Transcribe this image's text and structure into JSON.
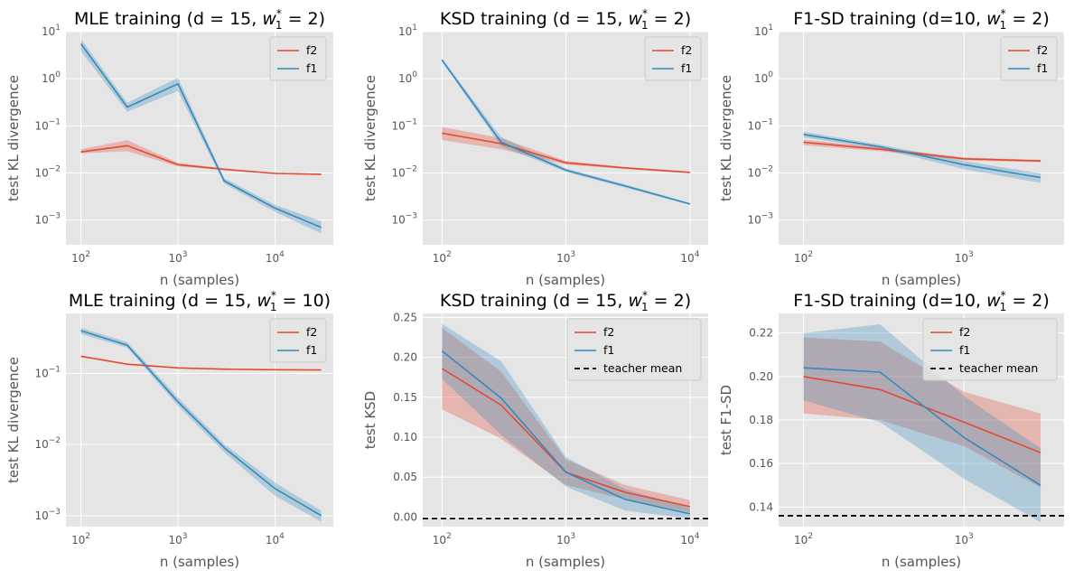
{
  "colors": {
    "f2": "#E24A33",
    "f1": "#348ABD",
    "panel_bg": "#E5E5E5",
    "grid": "#ffffff",
    "teacher": "#000000"
  },
  "chart_data": [
    {
      "type": "line",
      "title_main": "MLE training (d = 15, ",
      "title_math": "w",
      "title_sub": "1",
      "title_sup": "*",
      "title_rest": " = 2)",
      "xlabel": "n (samples)",
      "ylabel": "test KL divergence",
      "xscale": "log",
      "yscale": "log",
      "xlim": [
        70,
        40000
      ],
      "ylim": [
        0.0003,
        10
      ],
      "xticks": [
        {
          "value": 100,
          "base": "10",
          "exp": "2"
        },
        {
          "value": 1000,
          "base": "10",
          "exp": "3"
        },
        {
          "value": 10000,
          "base": "10",
          "exp": "4"
        }
      ],
      "yticks": [
        {
          "value": 0.001,
          "base": "10",
          "exp": "−3"
        },
        {
          "value": 0.01,
          "base": "10",
          "exp": "−2"
        },
        {
          "value": 0.1,
          "base": "10",
          "exp": "−1"
        },
        {
          "value": 1,
          "base": "10",
          "exp": "0"
        },
        {
          "value": 10,
          "base": "10",
          "exp": "1"
        }
      ],
      "legend": [
        "f2",
        "f1"
      ],
      "legend_position": "top-right",
      "series": [
        {
          "name": "f2",
          "x": [
            100,
            300,
            1000,
            3000,
            10000,
            30000
          ],
          "y": [
            0.028,
            0.038,
            0.015,
            0.012,
            0.0098,
            0.0094
          ],
          "lower": [
            0.026,
            0.029,
            0.0138,
            0.0115,
            0.0095,
            0.0091
          ],
          "upper": [
            0.032,
            0.05,
            0.0165,
            0.0125,
            0.0101,
            0.0097
          ]
        },
        {
          "name": "f1",
          "x": [
            100,
            300,
            1000,
            3000,
            10000,
            30000
          ],
          "y": [
            5.5,
            0.25,
            0.78,
            0.0068,
            0.0018,
            0.0007
          ],
          "lower": [
            3.8,
            0.2,
            0.55,
            0.006,
            0.0015,
            0.00052
          ],
          "upper": [
            7.0,
            0.31,
            1.05,
            0.0078,
            0.0021,
            0.00095
          ]
        }
      ]
    },
    {
      "type": "line",
      "title_main": "KSD training (d = 15, ",
      "title_math": "w",
      "title_sub": "1",
      "title_sup": "*",
      "title_rest": " = 2)",
      "xlabel": "n (samples)",
      "ylabel": "test KL divergence",
      "xscale": "log",
      "yscale": "log",
      "xlim": [
        70,
        14000
      ],
      "ylim": [
        0.0003,
        10
      ],
      "xticks": [
        {
          "value": 100,
          "base": "10",
          "exp": "2"
        },
        {
          "value": 1000,
          "base": "10",
          "exp": "3"
        },
        {
          "value": 10000,
          "base": "10",
          "exp": "4"
        }
      ],
      "yticks": [
        {
          "value": 0.001,
          "base": "10",
          "exp": "−3"
        },
        {
          "value": 0.01,
          "base": "10",
          "exp": "−2"
        },
        {
          "value": 0.1,
          "base": "10",
          "exp": "−1"
        },
        {
          "value": 1,
          "base": "10",
          "exp": "0"
        },
        {
          "value": 10,
          "base": "10",
          "exp": "1"
        }
      ],
      "legend": [
        "f2",
        "f1"
      ],
      "legend_position": "top-right",
      "series": [
        {
          "name": "f2",
          "x": [
            100,
            300,
            1000,
            3000,
            10000
          ],
          "y": [
            0.07,
            0.042,
            0.0165,
            0.0128,
            0.0103
          ],
          "lower": [
            0.05,
            0.032,
            0.015,
            0.0122,
            0.0099
          ],
          "upper": [
            0.095,
            0.055,
            0.018,
            0.0135,
            0.0107
          ]
        },
        {
          "name": "f1",
          "x": [
            100,
            300,
            1000,
            3000,
            10000
          ],
          "y": [
            2.5,
            0.045,
            0.0115,
            0.0053,
            0.0022
          ],
          "lower": [
            2.3,
            0.037,
            0.0105,
            0.0049,
            0.0021
          ],
          "upper": [
            2.7,
            0.058,
            0.0125,
            0.0057,
            0.0023
          ]
        }
      ]
    },
    {
      "type": "line",
      "title_main": "F1-SD training (d=10, ",
      "title_math": "w",
      "title_sub": "1",
      "title_sup": "*",
      "title_rest": " = 2)",
      "xlabel": "n (samples)",
      "ylabel": "test KL divergence",
      "xscale": "log",
      "yscale": "log",
      "xlim": [
        70,
        4200
      ],
      "ylim": [
        0.0003,
        10
      ],
      "xticks": [
        {
          "value": 100,
          "base": "10",
          "exp": "2"
        },
        {
          "value": 1000,
          "base": "10",
          "exp": "3"
        }
      ],
      "yticks": [
        {
          "value": 0.001,
          "base": "10",
          "exp": "−3"
        },
        {
          "value": 0.01,
          "base": "10",
          "exp": "−2"
        },
        {
          "value": 0.1,
          "base": "10",
          "exp": "−1"
        },
        {
          "value": 1,
          "base": "10",
          "exp": "0"
        },
        {
          "value": 10,
          "base": "10",
          "exp": "1"
        }
      ],
      "legend": [
        "f2",
        "f1"
      ],
      "legend_position": "top-right",
      "series": [
        {
          "name": "f2",
          "x": [
            100,
            300,
            1000,
            3000
          ],
          "y": [
            0.045,
            0.032,
            0.02,
            0.018
          ],
          "lower": [
            0.039,
            0.029,
            0.0185,
            0.017
          ],
          "upper": [
            0.051,
            0.035,
            0.0215,
            0.019
          ]
        },
        {
          "name": "f1",
          "x": [
            100,
            300,
            1000,
            3000
          ],
          "y": [
            0.066,
            0.036,
            0.015,
            0.008
          ],
          "lower": [
            0.057,
            0.033,
            0.012,
            0.0062
          ],
          "upper": [
            0.075,
            0.04,
            0.018,
            0.0098
          ]
        }
      ]
    },
    {
      "type": "line",
      "title_main": "MLE training (d = 15, ",
      "title_math": "w",
      "title_sub": "1",
      "title_sup": "*",
      "title_rest": " = 10)",
      "xlabel": "n (samples)",
      "ylabel": "test KL divergence",
      "xscale": "log",
      "yscale": "log",
      "xlim": [
        70,
        40000
      ],
      "ylim": [
        0.0007,
        0.7
      ],
      "xticks": [
        {
          "value": 100,
          "base": "10",
          "exp": "2"
        },
        {
          "value": 1000,
          "base": "10",
          "exp": "3"
        },
        {
          "value": 10000,
          "base": "10",
          "exp": "4"
        }
      ],
      "yticks": [
        {
          "value": 0.001,
          "base": "10",
          "exp": "−3"
        },
        {
          "value": 0.01,
          "base": "10",
          "exp": "−2"
        },
        {
          "value": 0.1,
          "base": "10",
          "exp": "−1"
        }
      ],
      "legend": [
        "f2",
        "f1"
      ],
      "legend_position": "top-right",
      "series": [
        {
          "name": "f2",
          "x": [
            100,
            300,
            1000,
            3000,
            10000,
            30000
          ],
          "y": [
            0.175,
            0.135,
            0.12,
            0.115,
            0.113,
            0.112
          ],
          "lower": [
            0.171,
            0.132,
            0.118,
            0.113,
            0.111,
            0.11
          ],
          "upper": [
            0.179,
            0.138,
            0.122,
            0.117,
            0.115,
            0.114
          ]
        },
        {
          "name": "f1",
          "x": [
            100,
            300,
            1000,
            3000,
            10000,
            30000
          ],
          "y": [
            0.4,
            0.25,
            0.04,
            0.009,
            0.0024,
            0.001
          ],
          "lower": [
            0.36,
            0.23,
            0.035,
            0.0078,
            0.0019,
            0.00082
          ],
          "upper": [
            0.44,
            0.275,
            0.046,
            0.0102,
            0.0029,
            0.00118
          ]
        }
      ]
    },
    {
      "type": "line",
      "title_main": "KSD training (d = 15, ",
      "title_math": "w",
      "title_sub": "1",
      "title_sup": "*",
      "title_rest": " = 2)",
      "xlabel": "n (samples)",
      "ylabel": "test KSD",
      "xscale": "log",
      "yscale": "linear",
      "xlim": [
        70,
        14000
      ],
      "ylim": [
        -0.012,
        0.255
      ],
      "xticks": [
        {
          "value": 100,
          "base": "10",
          "exp": "2"
        },
        {
          "value": 1000,
          "base": "10",
          "exp": "3"
        },
        {
          "value": 10000,
          "base": "10",
          "exp": "4"
        }
      ],
      "yticks": [
        {
          "value": 0.0,
          "label": "0.00"
        },
        {
          "value": 0.05,
          "label": "0.05"
        },
        {
          "value": 0.1,
          "label": "0.10"
        },
        {
          "value": 0.15,
          "label": "0.15"
        },
        {
          "value": 0.2,
          "label": "0.20"
        },
        {
          "value": 0.25,
          "label": "0.25"
        }
      ],
      "legend": [
        "f2",
        "f1",
        "teacher mean"
      ],
      "legend_position": "top-right",
      "teacher_mean": -0.002,
      "series": [
        {
          "name": "f2",
          "x": [
            100,
            300,
            1000,
            3000,
            10000
          ],
          "y": [
            0.186,
            0.14,
            0.056,
            0.031,
            0.013
          ],
          "lower": [
            0.135,
            0.098,
            0.04,
            0.022,
            0.006
          ],
          "upper": [
            0.237,
            0.182,
            0.072,
            0.04,
            0.021
          ]
        },
        {
          "name": "f1",
          "x": [
            100,
            300,
            1000,
            3000,
            10000
          ],
          "y": [
            0.208,
            0.149,
            0.056,
            0.022,
            0.004
          ],
          "lower": [
            0.173,
            0.103,
            0.038,
            0.008,
            -0.002
          ],
          "upper": [
            0.242,
            0.195,
            0.075,
            0.035,
            0.011
          ]
        }
      ]
    },
    {
      "type": "line",
      "title_main": "F1-SD training (d=10, ",
      "title_math": "w",
      "title_sub": "1",
      "title_sup": "*",
      "title_rest": " = 2)",
      "xlabel": "n (samples)",
      "ylabel": "test F1-SD",
      "xscale": "log",
      "yscale": "linear",
      "xlim": [
        70,
        4200
      ],
      "ylim": [
        0.131,
        0.229
      ],
      "xticks": [
        {
          "value": 100,
          "base": "10",
          "exp": "2"
        },
        {
          "value": 1000,
          "base": "10",
          "exp": "3"
        }
      ],
      "yticks": [
        {
          "value": 0.14,
          "label": "0.14"
        },
        {
          "value": 0.16,
          "label": "0.16"
        },
        {
          "value": 0.18,
          "label": "0.18"
        },
        {
          "value": 0.2,
          "label": "0.20"
        },
        {
          "value": 0.22,
          "label": "0.22"
        }
      ],
      "legend": [
        "f2",
        "f1",
        "teacher mean"
      ],
      "legend_position": "top-right",
      "teacher_mean": 0.136,
      "series": [
        {
          "name": "f2",
          "x": [
            100,
            300,
            1000,
            3000
          ],
          "y": [
            0.2,
            0.194,
            0.179,
            0.165
          ],
          "lower": [
            0.183,
            0.18,
            0.168,
            0.149
          ],
          "upper": [
            0.218,
            0.216,
            0.193,
            0.183
          ]
        },
        {
          "name": "f1",
          "x": [
            100,
            300,
            1000,
            3000
          ],
          "y": [
            0.204,
            0.202,
            0.172,
            0.15
          ],
          "lower": [
            0.189,
            0.179,
            0.153,
            0.133
          ],
          "upper": [
            0.22,
            0.224,
            0.191,
            0.167
          ]
        }
      ]
    }
  ]
}
